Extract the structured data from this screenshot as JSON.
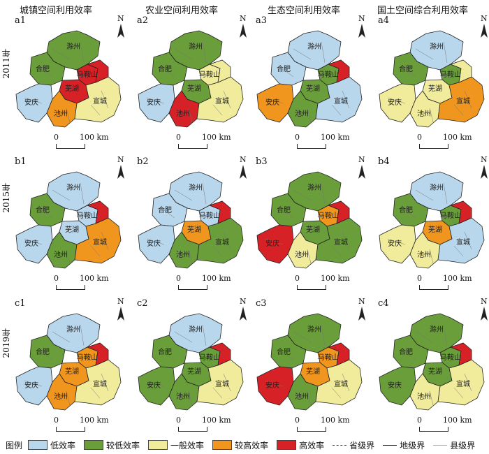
{
  "columns": [
    "城镇空间利用效率",
    "农业空间利用效率",
    "生态空间利用效率",
    "国土空间综合利用效率"
  ],
  "rows": [
    "2011年",
    "2015年",
    "2019年"
  ],
  "panel_labels": [
    [
      "a1",
      "a2",
      "a3",
      "a4"
    ],
    [
      "b1",
      "b2",
      "b3",
      "b4"
    ],
    [
      "c1",
      "c2",
      "c3",
      "c4"
    ]
  ],
  "north_label": "N",
  "scale": {
    "zero": "0",
    "end": "100 km"
  },
  "colors": {
    "低效率": "#b9d7ec",
    "较低效率": "#6a9e3a",
    "一般效率": "#f0ec9c",
    "较高效率": "#f0961f",
    "高效率": "#d62127"
  },
  "city_names": [
    "滁州",
    "合肥",
    "马鞍山",
    "芜湖",
    "安庆",
    "池州",
    "宣城"
  ],
  "legend": {
    "title": "图例",
    "classes": [
      "低效率",
      "较低效率",
      "一般效率",
      "较高效率",
      "高效率"
    ],
    "boundaries": [
      "省级界",
      "地级界",
      "县级界"
    ]
  },
  "panel_fill": {
    "a1": {
      "滁州": "较低效率",
      "合肥": "较低效率",
      "马鞍山": "高效率",
      "芜湖": "高效率",
      "安庆": "低效率",
      "池州": "较高效率",
      "宣城": "一般效率",
      "extra": "高效率"
    },
    "a2": {
      "滁州": "较低效率",
      "合肥": "较低效率",
      "马鞍山": "一般效率",
      "芜湖": "较低效率",
      "安庆": "低效率",
      "池州": "高效率",
      "宣城": "一般效率",
      "extra": "一般效率"
    },
    "a3": {
      "滁州": "低效率",
      "合肥": "低效率",
      "马鞍山": "较低效率",
      "芜湖": "较低效率",
      "安庆": "较高效率",
      "池州": "较低效率",
      "宣城": "低效率",
      "extra": "高效率"
    },
    "a4": {
      "滁州": "低效率",
      "合肥": "较低效率",
      "马鞍山": "较低效率",
      "芜湖": "一般效率",
      "安庆": "一般效率",
      "池州": "一般效率",
      "宣城": "较高效率",
      "extra": "一般效率"
    },
    "b1": {
      "滁州": "低效率",
      "合肥": "较低效率",
      "马鞍山": "低效率",
      "芜湖": "低效率",
      "安庆": "低效率",
      "池州": "较低效率",
      "宣城": "较高效率",
      "extra": "高效率"
    },
    "b2": {
      "滁州": "低效率",
      "合肥": "低效率",
      "马鞍山": "低效率",
      "芜湖": "较高效率",
      "安庆": "低效率",
      "池州": "较低效率",
      "宣城": "较低效率",
      "extra": "高效率"
    },
    "b3": {
      "滁州": "较低效率",
      "合肥": "较低效率",
      "马鞍山": "较高效率",
      "芜湖": "较低效率",
      "安庆": "高效率",
      "池州": "一般效率",
      "宣城": "较低效率",
      "extra": "高效率"
    },
    "b4": {
      "滁州": "低效率",
      "合肥": "较低效率",
      "马鞍山": "较低效率",
      "芜湖": "较高效率",
      "安庆": "一般效率",
      "池州": "一般效率",
      "宣城": "低效率",
      "extra": "高效率"
    },
    "c1": {
      "滁州": "低效率",
      "合肥": "较低效率",
      "马鞍山": "较高效率",
      "芜湖": "较高效率",
      "安庆": "低效率",
      "池州": "较高效率",
      "宣城": "一般效率",
      "extra": "高效率"
    },
    "c2": {
      "滁州": "低效率",
      "合肥": "较低效率",
      "马鞍山": "较低效率",
      "芜湖": "较低效率",
      "安庆": "较低效率",
      "池州": "较低效率",
      "宣城": "一般效率",
      "extra": "高效率"
    },
    "c3": {
      "滁州": "较低效率",
      "合肥": "较低效率",
      "马鞍山": "较高效率",
      "芜湖": "较高效率",
      "安庆": "高效率",
      "池州": "较低效率",
      "宣城": "一般效率",
      "extra": "高效率"
    },
    "c4": {
      "滁州": "较低效率",
      "合肥": "较低效率",
      "马鞍山": "较低效率",
      "芜湖": "较低效率",
      "安庆": "较低效率",
      "池州": "一般效率",
      "宣城": "一般效率",
      "extra": "高效率"
    }
  }
}
